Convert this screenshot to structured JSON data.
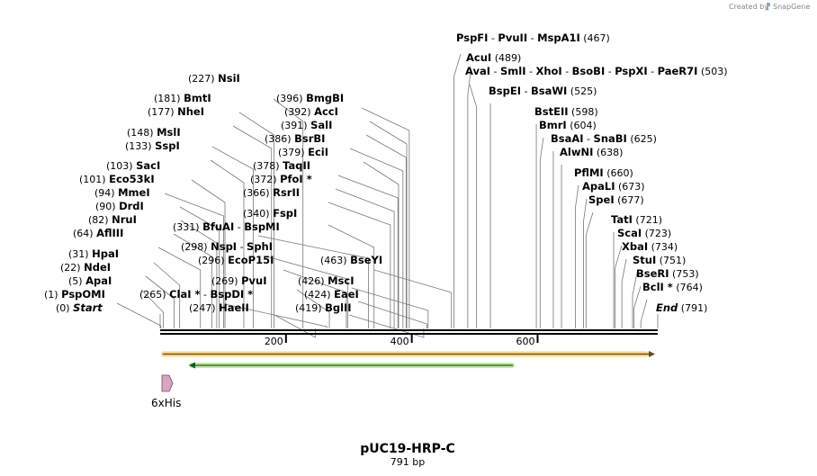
{
  "credit": {
    "text": "Created by",
    "brand": "SnapGene"
  },
  "plasmid": {
    "name": "pUC19-HRP-C",
    "length_label": "791 bp",
    "length": 791
  },
  "axis": {
    "ticks": [
      {
        "pos": 200,
        "label": "200"
      },
      {
        "pos": 400,
        "label": "400"
      },
      {
        "pos": 600,
        "label": "600"
      }
    ]
  },
  "colors": {
    "orange": "#ef9e16",
    "orange_fill": "#fbd58c",
    "green": "#0e8a2c",
    "green_fill": "#c6e8a0",
    "feature": "#d7a5c2"
  },
  "features": [
    {
      "name": "6xHis",
      "start": 1,
      "end": 19,
      "direction": "forward"
    }
  ],
  "arrows": [
    {
      "name": "orange-arrow",
      "start": 1,
      "end": 791,
      "direction": "forward"
    },
    {
      "name": "green-arrow",
      "start": 46,
      "end": 562,
      "direction": "reverse"
    }
  ],
  "sites": [
    {
      "pos_label": "(0)",
      "names": [
        "Start"
      ],
      "pos": 0,
      "italic": true
    },
    {
      "pos_label": "(1)",
      "names": [
        "PspOMI"
      ],
      "pos": 1
    },
    {
      "pos_label": "(5)",
      "names": [
        "ApaI"
      ],
      "pos": 5
    },
    {
      "pos_label": "(22)",
      "names": [
        "NdeI"
      ],
      "pos": 22
    },
    {
      "pos_label": "(31)",
      "names": [
        "HpaI"
      ],
      "pos": 31
    },
    {
      "pos_label": "(64)",
      "names": [
        "AflIII"
      ],
      "pos": 64
    },
    {
      "pos_label": "(82)",
      "names": [
        "NruI"
      ],
      "pos": 82
    },
    {
      "pos_label": "(90)",
      "names": [
        "DrdI"
      ],
      "pos": 90
    },
    {
      "pos_label": "(94)",
      "names": [
        "MmeI"
      ],
      "pos": 94
    },
    {
      "pos_label": "(101)",
      "names": [
        "Eco53kI"
      ],
      "pos": 101
    },
    {
      "pos_label": "(103)",
      "names": [
        "SacI"
      ],
      "pos": 103
    },
    {
      "pos_label": "(133)",
      "names": [
        "SspI"
      ],
      "pos": 133
    },
    {
      "pos_label": "(148)",
      "names": [
        "MslI"
      ],
      "pos": 148
    },
    {
      "pos_label": "(177)",
      "names": [
        "NheI"
      ],
      "pos": 177
    },
    {
      "pos_label": "(181)",
      "names": [
        "BmtI"
      ],
      "pos": 181
    },
    {
      "pos_label": "(227)",
      "names": [
        "NsiI"
      ],
      "pos": 227
    },
    {
      "pos_label": "(265)",
      "names": [
        "ClaI *",
        "BspDI *"
      ],
      "pos": 265
    },
    {
      "pos_label": "(247)",
      "names": [
        "HaeII"
      ],
      "pos": 247
    },
    {
      "pos_label": "(331)",
      "names": [
        "BfuAI",
        "BspMI"
      ],
      "pos": 331
    },
    {
      "pos_label": "(298)",
      "names": [
        "NspI",
        "SphI"
      ],
      "pos": 298
    },
    {
      "pos_label": "(296)",
      "names": [
        "EcoP15I"
      ],
      "pos": 296
    },
    {
      "pos_label": "(269)",
      "names": [
        "PvuI"
      ],
      "pos": 269
    },
    {
      "pos_label": "(340)",
      "names": [
        "FspI"
      ],
      "pos": 340
    },
    {
      "pos_label": "(366)",
      "names": [
        "RsrII"
      ],
      "pos": 366
    },
    {
      "pos_label": "(372)",
      "names": [
        "PfoI *"
      ],
      "pos": 372
    },
    {
      "pos_label": "(378)",
      "names": [
        "TaqII"
      ],
      "pos": 378
    },
    {
      "pos_label": "(379)",
      "names": [
        "EciI"
      ],
      "pos": 379
    },
    {
      "pos_label": "(386)",
      "names": [
        "BsrBI"
      ],
      "pos": 386
    },
    {
      "pos_label": "(391)",
      "names": [
        "SalI"
      ],
      "pos": 391
    },
    {
      "pos_label": "(392)",
      "names": [
        "AccI"
      ],
      "pos": 392
    },
    {
      "pos_label": "(396)",
      "names": [
        "BmgBI"
      ],
      "pos": 396
    },
    {
      "pos_label": "(463)",
      "names": [
        "BseYI"
      ],
      "pos": 463
    },
    {
      "pos_label": "(426)",
      "names": [
        "MscI"
      ],
      "pos": 426
    },
    {
      "pos_label": "(424)",
      "names": [
        "EaeI"
      ],
      "pos": 424
    },
    {
      "pos_label": "(419)",
      "names": [
        "BglII"
      ],
      "pos": 419
    },
    {
      "pos_label": "(467)",
      "names": [
        "PspFI",
        "PvuII",
        "MspA1I"
      ],
      "pos": 467
    },
    {
      "pos_label": "(489)",
      "names": [
        "AcuI"
      ],
      "pos": 489
    },
    {
      "pos_label": "(503)",
      "names": [
        "AvaI",
        "SmlI",
        "XhoI",
        "BsoBI",
        "PspXI",
        "PaeR7I"
      ],
      "pos": 503
    },
    {
      "pos_label": "(525)",
      "names": [
        "BspEI",
        "BsaWI"
      ],
      "pos": 525
    },
    {
      "pos_label": "(598)",
      "names": [
        "BstEII"
      ],
      "pos": 598
    },
    {
      "pos_label": "(604)",
      "names": [
        "BmrI"
      ],
      "pos": 604
    },
    {
      "pos_label": "(625)",
      "names": [
        "BsaAI",
        "SnaBI"
      ],
      "pos": 625
    },
    {
      "pos_label": "(638)",
      "names": [
        "AlwNI"
      ],
      "pos": 638
    },
    {
      "pos_label": "(660)",
      "names": [
        "PflMI"
      ],
      "pos": 660
    },
    {
      "pos_label": "(673)",
      "names": [
        "ApaLI"
      ],
      "pos": 673
    },
    {
      "pos_label": "(677)",
      "names": [
        "SpeI"
      ],
      "pos": 677
    },
    {
      "pos_label": "(721)",
      "names": [
        "TatI"
      ],
      "pos": 721
    },
    {
      "pos_label": "(723)",
      "names": [
        "ScaI"
      ],
      "pos": 723
    },
    {
      "pos_label": "(734)",
      "names": [
        "XbaI"
      ],
      "pos": 734
    },
    {
      "pos_label": "(751)",
      "names": [
        "StuI"
      ],
      "pos": 751
    },
    {
      "pos_label": "(753)",
      "names": [
        "BseRI"
      ],
      "pos": 753
    },
    {
      "pos_label": "(764)",
      "names": [
        "BclI *"
      ],
      "pos": 764
    },
    {
      "pos_label": "(791)",
      "names": [
        "End"
      ],
      "pos": 791,
      "italic": true
    }
  ]
}
